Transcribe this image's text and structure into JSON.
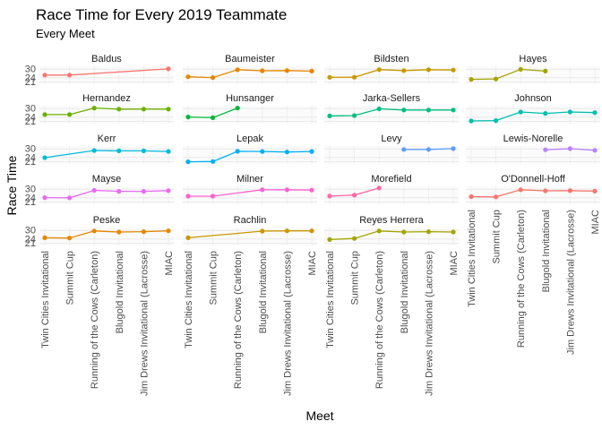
{
  "chart_data": {
    "type": "line",
    "title": "Race Time for Every 2019 Teammate",
    "subtitle": "Every Meet",
    "xlabel": "Meet",
    "ylabel": "Race Time",
    "categories": [
      "Twin Cities Invitational",
      "Summit Cup",
      "Running of the Cows (Carleton)",
      "Blugold Invitational",
      "Jim Drews Invitational (Lacrosse)",
      "MIAC"
    ],
    "ylim": [
      19.5,
      32.0
    ],
    "yticks": [
      21,
      24,
      30
    ],
    "grid": true,
    "legend": "none",
    "series": [
      {
        "name": "Baldus",
        "color": "#F8766D",
        "values": [
          25.9,
          25.9,
          null,
          null,
          null,
          30.2
        ]
      },
      {
        "name": "Baumeister",
        "color": "#E58700",
        "values": [
          24.7,
          24.1,
          29.6,
          28.9,
          29.0,
          28.6
        ]
      },
      {
        "name": "Bildsten",
        "color": "#C99800",
        "values": [
          24.3,
          24.4,
          29.7,
          29.0,
          29.6,
          29.4
        ]
      },
      {
        "name": "Hayes",
        "color": "#A3A500",
        "values": [
          22.9,
          23.2,
          29.9,
          28.6,
          null,
          null
        ]
      },
      {
        "name": "Hernandez",
        "color": "#6BB100",
        "values": [
          25.8,
          25.8,
          30.4,
          29.6,
          29.6,
          29.6
        ]
      },
      {
        "name": "Hunsanger",
        "color": "#00BA38",
        "values": [
          24.1,
          23.6,
          30.4,
          null,
          null,
          null
        ]
      },
      {
        "name": "Jarka-Sellers",
        "color": "#00BF7D",
        "values": [
          24.9,
          25.1,
          29.8,
          29.0,
          29.0,
          29.0
        ]
      },
      {
        "name": "Johnson",
        "color": "#00C0AF",
        "values": [
          21.4,
          21.6,
          27.6,
          26.6,
          27.6,
          27.2
        ]
      },
      {
        "name": "Kerr",
        "color": "#00BCD8",
        "values": [
          23.9,
          null,
          28.9,
          28.6,
          28.6,
          28.2
        ]
      },
      {
        "name": "Lepak",
        "color": "#00B0F6",
        "values": [
          21.0,
          21.2,
          28.3,
          28.2,
          27.8,
          28.2
        ]
      },
      {
        "name": "Levy",
        "color": "#619CFF",
        "values": [
          null,
          null,
          null,
          29.6,
          29.6,
          30.2
        ]
      },
      {
        "name": "Lewis-Norelle",
        "color": "#B983FF",
        "values": [
          null,
          null,
          null,
          29.4,
          30.2,
          29.0
        ]
      },
      {
        "name": "Mayse",
        "color": "#E76BF3",
        "values": [
          24.1,
          24.0,
          29.2,
          28.5,
          28.5,
          29.0
        ]
      },
      {
        "name": "Milner",
        "color": "#FD61D1",
        "values": [
          25.1,
          25.1,
          null,
          29.6,
          29.6,
          29.4
        ]
      },
      {
        "name": "Morefield",
        "color": "#FF67A4",
        "values": [
          25.2,
          25.9,
          30.8,
          null,
          null,
          null
        ]
      },
      {
        "name": "O'Donnell-Hoff",
        "color": "#F8766D",
        "values": [
          24.8,
          24.6,
          29.6,
          28.9,
          29.0,
          28.6
        ]
      },
      {
        "name": "Peske",
        "color": "#E58700",
        "values": [
          24.9,
          24.7,
          29.6,
          28.9,
          29.1,
          29.7
        ]
      },
      {
        "name": "Rachlin",
        "color": "#C99800",
        "values": [
          24.9,
          null,
          null,
          29.5,
          29.7,
          29.7
        ]
      },
      {
        "name": "Reyes Herrera",
        "color": "#A3A500",
        "values": [
          23.6,
          24.4,
          29.6,
          28.9,
          29.1,
          28.9
        ]
      }
    ]
  }
}
